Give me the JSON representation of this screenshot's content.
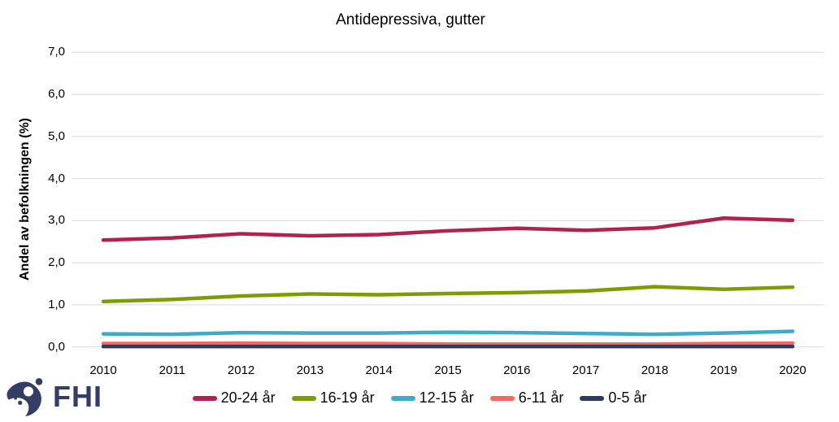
{
  "chart_data": {
    "type": "line",
    "title": "Antidepressiva, gutter",
    "xlabel": "",
    "ylabel": "Andel av befolkningen (%)",
    "ylim": [
      0,
      7
    ],
    "ytick_step": 1,
    "ytick_labels": [
      "0,0",
      "1,0",
      "2,0",
      "3,0",
      "4,0",
      "5,0",
      "6,0",
      "7,0"
    ],
    "grid": "horizontal",
    "legend_position": "bottom",
    "categories": [
      "2010",
      "2011",
      "2012",
      "2013",
      "2014",
      "2015",
      "2016",
      "2017",
      "2018",
      "2019",
      "2020"
    ],
    "series": [
      {
        "name": "20-24 år",
        "color": "#b1224c",
        "values": [
          2.54,
          2.59,
          2.69,
          2.64,
          2.67,
          2.76,
          2.82,
          2.77,
          2.83,
          3.06,
          3.01
        ]
      },
      {
        "name": "16-19 år",
        "color": "#7d9c04",
        "values": [
          1.08,
          1.13,
          1.21,
          1.26,
          1.24,
          1.27,
          1.29,
          1.33,
          1.43,
          1.37,
          1.42
        ]
      },
      {
        "name": "12-15 år",
        "color": "#3fabc9",
        "values": [
          0.31,
          0.3,
          0.34,
          0.33,
          0.33,
          0.35,
          0.34,
          0.32,
          0.3,
          0.33,
          0.37
        ]
      },
      {
        "name": "6-11 år",
        "color": "#f7695e",
        "values": [
          0.08,
          0.08,
          0.09,
          0.08,
          0.08,
          0.07,
          0.07,
          0.07,
          0.07,
          0.08,
          0.09
        ]
      },
      {
        "name": "0-5 år",
        "color": "#2f3a5c",
        "values": [
          0.01,
          0.01,
          0.01,
          0.01,
          0.01,
          0.01,
          0.01,
          0.01,
          0.01,
          0.01,
          0.01
        ]
      }
    ]
  },
  "branding": {
    "logo_text": "FHI",
    "logo_color": "#333d66"
  },
  "style_colors": {
    "gridline": "#d9d9d9",
    "axis_text": "#000000"
  }
}
